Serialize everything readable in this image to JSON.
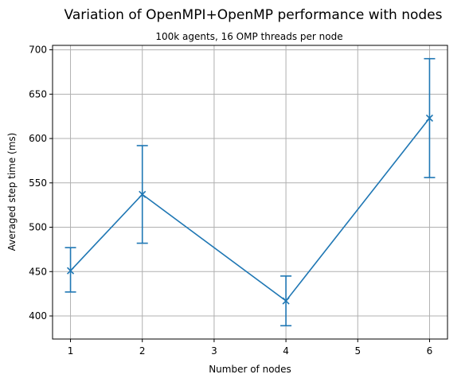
{
  "chart_data": {
    "type": "line",
    "title": "Variation of OpenMPI+OpenMP performance with nodes",
    "subtitle": "100k agents, 16 OMP threads per node",
    "xlabel": "Number of nodes",
    "ylabel": "Averaged step time (ms)",
    "xlim": [
      0.75,
      6.25
    ],
    "ylim": [
      374,
      705
    ],
    "xticks": [
      1,
      2,
      3,
      4,
      5,
      6
    ],
    "yticks": [
      400,
      450,
      500,
      550,
      600,
      650,
      700
    ],
    "grid": true,
    "marker": "x",
    "color": "#1f77b4",
    "series": [
      {
        "x": [
          1,
          2,
          4,
          6
        ],
        "y": [
          451,
          537,
          417,
          623
        ],
        "err_low": [
          427,
          482,
          389,
          556
        ],
        "err_high": [
          477,
          592,
          445,
          690
        ]
      }
    ]
  }
}
